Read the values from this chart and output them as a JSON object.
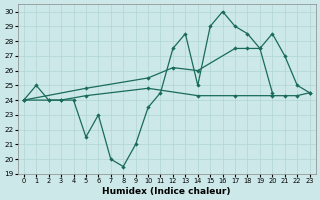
{
  "xlabel": "Humidex (Indice chaleur)",
  "ylim": [
    19,
    30.5
  ],
  "yticks": [
    19,
    20,
    21,
    22,
    23,
    24,
    25,
    26,
    27,
    28,
    29,
    30
  ],
  "bg_color": "#cce8e8",
  "grid_color": "#b0d4d4",
  "line_color": "#1a6b5a",
  "curve_hourly_x": [
    0,
    1,
    2,
    3,
    4,
    5,
    6,
    7,
    8,
    9,
    10,
    11,
    12,
    13,
    14,
    15,
    16,
    17,
    18,
    19,
    20
  ],
  "curve_hourly_y": [
    24,
    25,
    24,
    24,
    24,
    21.5,
    23,
    20,
    19.5,
    21,
    23.5,
    24.5,
    27.5,
    28.5,
    25,
    29,
    30,
    29,
    28.5,
    27.5,
    24.5
  ],
  "curve_flat_x": [
    0,
    2,
    3,
    5,
    10,
    14,
    17,
    20,
    21,
    22,
    23
  ],
  "curve_flat_y": [
    24,
    24,
    24,
    24.3,
    24.8,
    24.3,
    24.3,
    24.3,
    24.3,
    24.3,
    24.5
  ],
  "curve_rise_x": [
    0,
    5,
    10,
    12,
    14,
    17,
    18,
    19,
    20,
    21,
    22,
    23
  ],
  "curve_rise_y": [
    24,
    24.8,
    25.5,
    26.2,
    26.0,
    27.5,
    27.5,
    27.5,
    28.5,
    27.0,
    25.0,
    24.5
  ],
  "figsize": [
    3.2,
    2.0
  ],
  "dpi": 100
}
